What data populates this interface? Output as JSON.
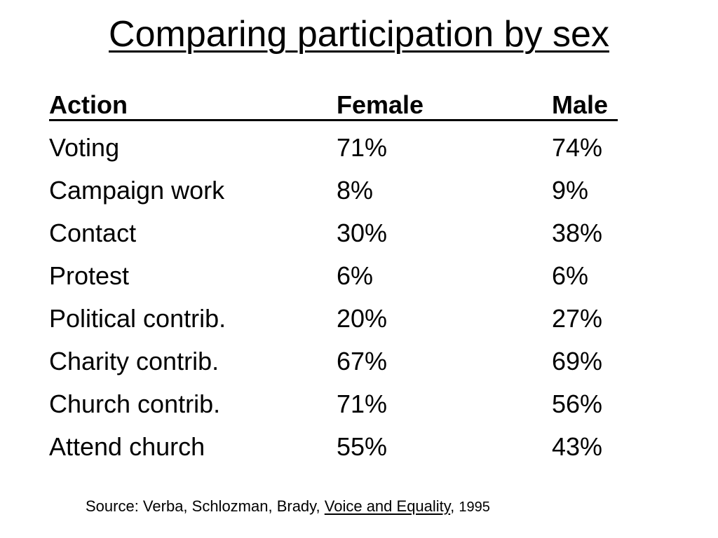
{
  "slide": {
    "title": "Comparing participation by sex",
    "table": {
      "headers": {
        "action": "Action",
        "female": "Female",
        "male": "Male"
      },
      "rows": [
        {
          "action": "Voting",
          "female": "71%",
          "male": "74%"
        },
        {
          "action": "Campaign work",
          "female": "8%",
          "male": "9%"
        },
        {
          "action": "Contact",
          "female": "30%",
          "male": "38%"
        },
        {
          "action": "Protest",
          "female": "6%",
          "male": "6%"
        },
        {
          "action": "Political contrib.",
          "female": "20%",
          "male": "27%"
        },
        {
          "action": "Charity contrib.",
          "female": "67%",
          "male": "69%"
        },
        {
          "action": "Church contrib.",
          "female": "71%",
          "male": "56%"
        },
        {
          "action": "Attend church",
          "female": "55%",
          "male": "43%"
        }
      ]
    },
    "source": {
      "prefix": "Source: Verba, Schlozman, Brady, ",
      "book": "Voice and Equality",
      "separator": ", ",
      "year": "1995"
    }
  }
}
